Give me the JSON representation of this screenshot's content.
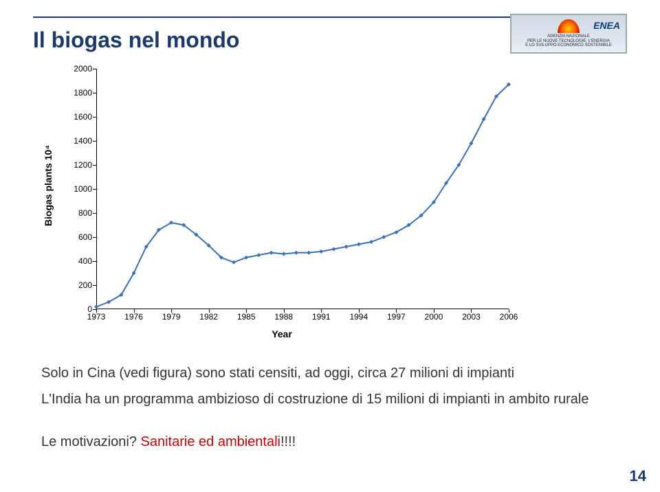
{
  "slide": {
    "title": "Il biogas nel mondo",
    "page_number": "14"
  },
  "logo": {
    "brand": "ENEA",
    "line1": "AGENZIA NAZIONALE",
    "line2": "PER LE NUOVE TECNOLOGIE, L'ENERGIA",
    "line3": "E LO SVILUPPO ECONOMICO SOSTENIBILE"
  },
  "chart": {
    "type": "line",
    "ylabel": "Biogas plants 10⁴",
    "xlabel": "Year",
    "xlim": [
      1973,
      2006
    ],
    "ylim": [
      0,
      2000
    ],
    "yticks": [
      0,
      200,
      400,
      600,
      800,
      1000,
      1200,
      1400,
      1600,
      1800,
      2000
    ],
    "xticks": [
      1973,
      1976,
      1979,
      1982,
      1985,
      1988,
      1991,
      1994,
      1997,
      2000,
      2003,
      2006
    ],
    "line_color": "#3b6fb6",
    "line_width": 2,
    "marker": "diamond",
    "marker_size": 6,
    "marker_color": "#3b6fb6",
    "background_color": "#ffffff",
    "data": {
      "x": [
        1973,
        1974,
        1975,
        1976,
        1977,
        1978,
        1979,
        1980,
        1981,
        1982,
        1983,
        1984,
        1985,
        1986,
        1987,
        1988,
        1989,
        1990,
        1991,
        1992,
        1993,
        1994,
        1995,
        1996,
        1997,
        1998,
        1999,
        2000,
        2001,
        2002,
        2003,
        2004,
        2005,
        2006
      ],
      "y": [
        20,
        60,
        120,
        300,
        520,
        660,
        720,
        700,
        620,
        530,
        430,
        390,
        430,
        450,
        470,
        460,
        470,
        470,
        480,
        500,
        520,
        540,
        560,
        600,
        640,
        700,
        780,
        890,
        1050,
        1200,
        1380,
        1580,
        1770,
        1870
      ]
    }
  },
  "text": {
    "line1_a": "Solo in  Cina (vedi figura) sono stati censiti, ad oggi, circa ",
    "line1_b": "27 milioni di impianti",
    "line2": "L'India ha un programma ambizioso di costruzione di 15 milioni di impianti in ambito rurale",
    "line3_a": "Le motivazioni? ",
    "line3_b": "Sanitarie ed ambientali",
    "line3_c": "!!!!"
  }
}
